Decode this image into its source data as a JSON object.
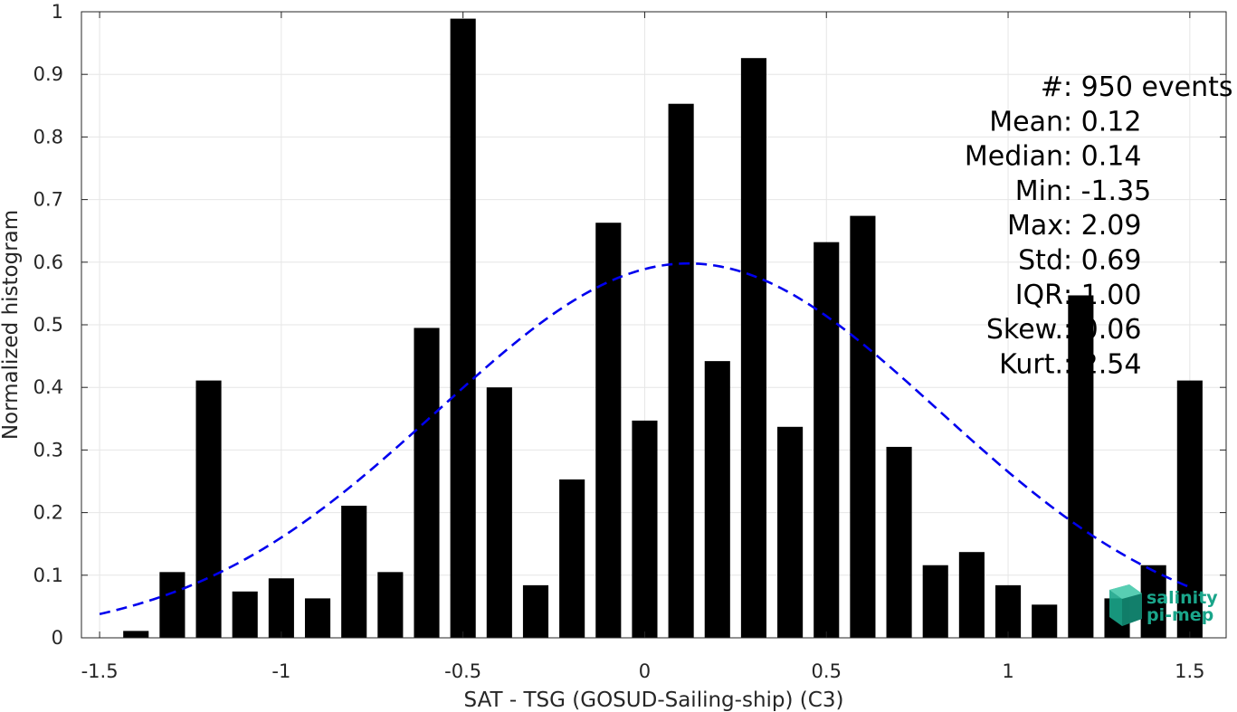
{
  "chart_data": {
    "type": "bar",
    "xlabel": "SAT - TSG (GOSUD-Sailing-ship) (C3)",
    "ylabel": "Normalized histogram",
    "xlim": [
      -1.55,
      1.6
    ],
    "ylim": [
      0,
      1
    ],
    "xticks": [
      -1.5,
      -1,
      -0.5,
      0,
      0.5,
      1,
      1.5
    ],
    "xtick_labels": [
      "-1.5",
      "-1",
      "-0.5",
      "0",
      "0.5",
      "1",
      "1.5"
    ],
    "yticks": [
      0,
      0.1,
      0.2,
      0.3,
      0.4,
      0.5,
      0.6,
      0.7,
      0.8,
      0.9,
      1
    ],
    "ytick_labels": [
      "0",
      "0.1",
      "0.2",
      "0.3",
      "0.4",
      "0.5",
      "0.6",
      "0.7",
      "0.8",
      "0.9",
      "1"
    ],
    "grid": true,
    "bar_color": "#000000",
    "bar_width": 0.07,
    "x": [
      -1.4,
      -1.3,
      -1.2,
      -1.1,
      -1.0,
      -0.9,
      -0.8,
      -0.7,
      -0.6,
      -0.5,
      -0.4,
      -0.3,
      -0.2,
      -0.1,
      0.0,
      0.1,
      0.2,
      0.3,
      0.4,
      0.5,
      0.6,
      0.7,
      0.8,
      0.9,
      1.0,
      1.1,
      1.2,
      1.3,
      1.4,
      1.5
    ],
    "values": [
      0.011,
      0.105,
      0.411,
      0.074,
      0.095,
      0.063,
      0.211,
      0.105,
      0.495,
      0.989,
      0.4,
      0.084,
      0.253,
      0.663,
      0.347,
      0.853,
      0.442,
      0.926,
      0.337,
      0.632,
      0.674,
      0.305,
      0.116,
      0.137,
      0.084,
      0.053,
      0.547,
      0.063,
      0.116,
      0.411
    ],
    "fit_curve": {
      "type": "gaussian",
      "mean": 0.12,
      "std": 0.69,
      "peak": 0.598,
      "x_range": [
        -1.5,
        1.5
      ],
      "color": "#0000ee",
      "style": "dashed"
    },
    "stats": [
      {
        "label": "#  ",
        "value": ": 950 events"
      },
      {
        "label": "Mean ",
        "value": ": 0.12"
      },
      {
        "label": "Median ",
        "value": ": 0.14"
      },
      {
        "label": "Min ",
        "value": ": -1.35"
      },
      {
        "label": "Max ",
        "value": ": 2.09"
      },
      {
        "label": "Std ",
        "value": ": 0.69"
      },
      {
        "label": "IQR ",
        "value": ": 1.00"
      },
      {
        "label": "Skew. ",
        "value": ": 0.06"
      },
      {
        "label": "Kurt. ",
        "value": ": 2.54"
      }
    ]
  },
  "logo": {
    "line1": "salinity",
    "line2": "pi-mep",
    "color": "#1aa58a"
  }
}
